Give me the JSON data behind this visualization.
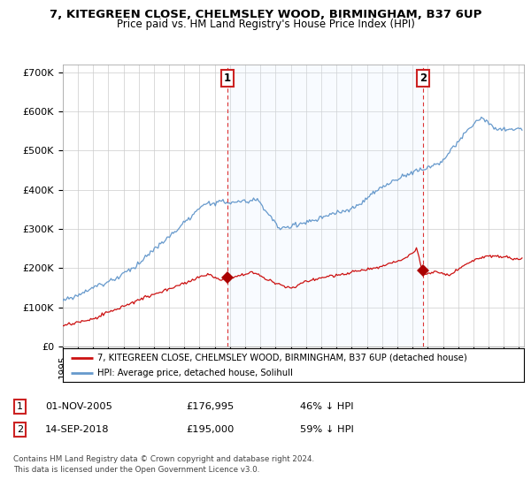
{
  "title_line1": "7, KITEGREEN CLOSE, CHELMSLEY WOOD, BIRMINGHAM, B37 6UP",
  "title_line2": "Price paid vs. HM Land Registry's House Price Index (HPI)",
  "xlim_start": 1995.0,
  "xlim_end": 2025.3,
  "ylim_min": 0,
  "ylim_max": 720000,
  "yticks": [
    0,
    100000,
    200000,
    300000,
    400000,
    500000,
    600000,
    700000
  ],
  "ytick_labels": [
    "£0",
    "£100K",
    "£200K",
    "£300K",
    "£400K",
    "£500K",
    "£600K",
    "£700K"
  ],
  "hpi_color": "#6699cc",
  "hpi_fill_color": "#ddeeff",
  "price_color": "#cc1111",
  "marker_color": "#aa0000",
  "vline_color": "#dd3333",
  "transaction1_date": 2005.833,
  "transaction1_price": 176995,
  "transaction1_label": "1",
  "transaction2_date": 2018.708,
  "transaction2_price": 195000,
  "transaction2_label": "2",
  "legend_label_red": "7, KITEGREEN CLOSE, CHELMSLEY WOOD, BIRMINGHAM, B37 6UP (detached house)",
  "legend_label_blue": "HPI: Average price, detached house, Solihull",
  "footer_line1": "Contains HM Land Registry data © Crown copyright and database right 2024.",
  "footer_line2": "This data is licensed under the Open Government Licence v3.0.",
  "table_row1": [
    "1",
    "01-NOV-2005",
    "£176,995",
    "46% ↓ HPI"
  ],
  "table_row2": [
    "2",
    "14-SEP-2018",
    "£195,000",
    "59% ↓ HPI"
  ],
  "background_color": "#ffffff",
  "grid_color": "#cccccc"
}
